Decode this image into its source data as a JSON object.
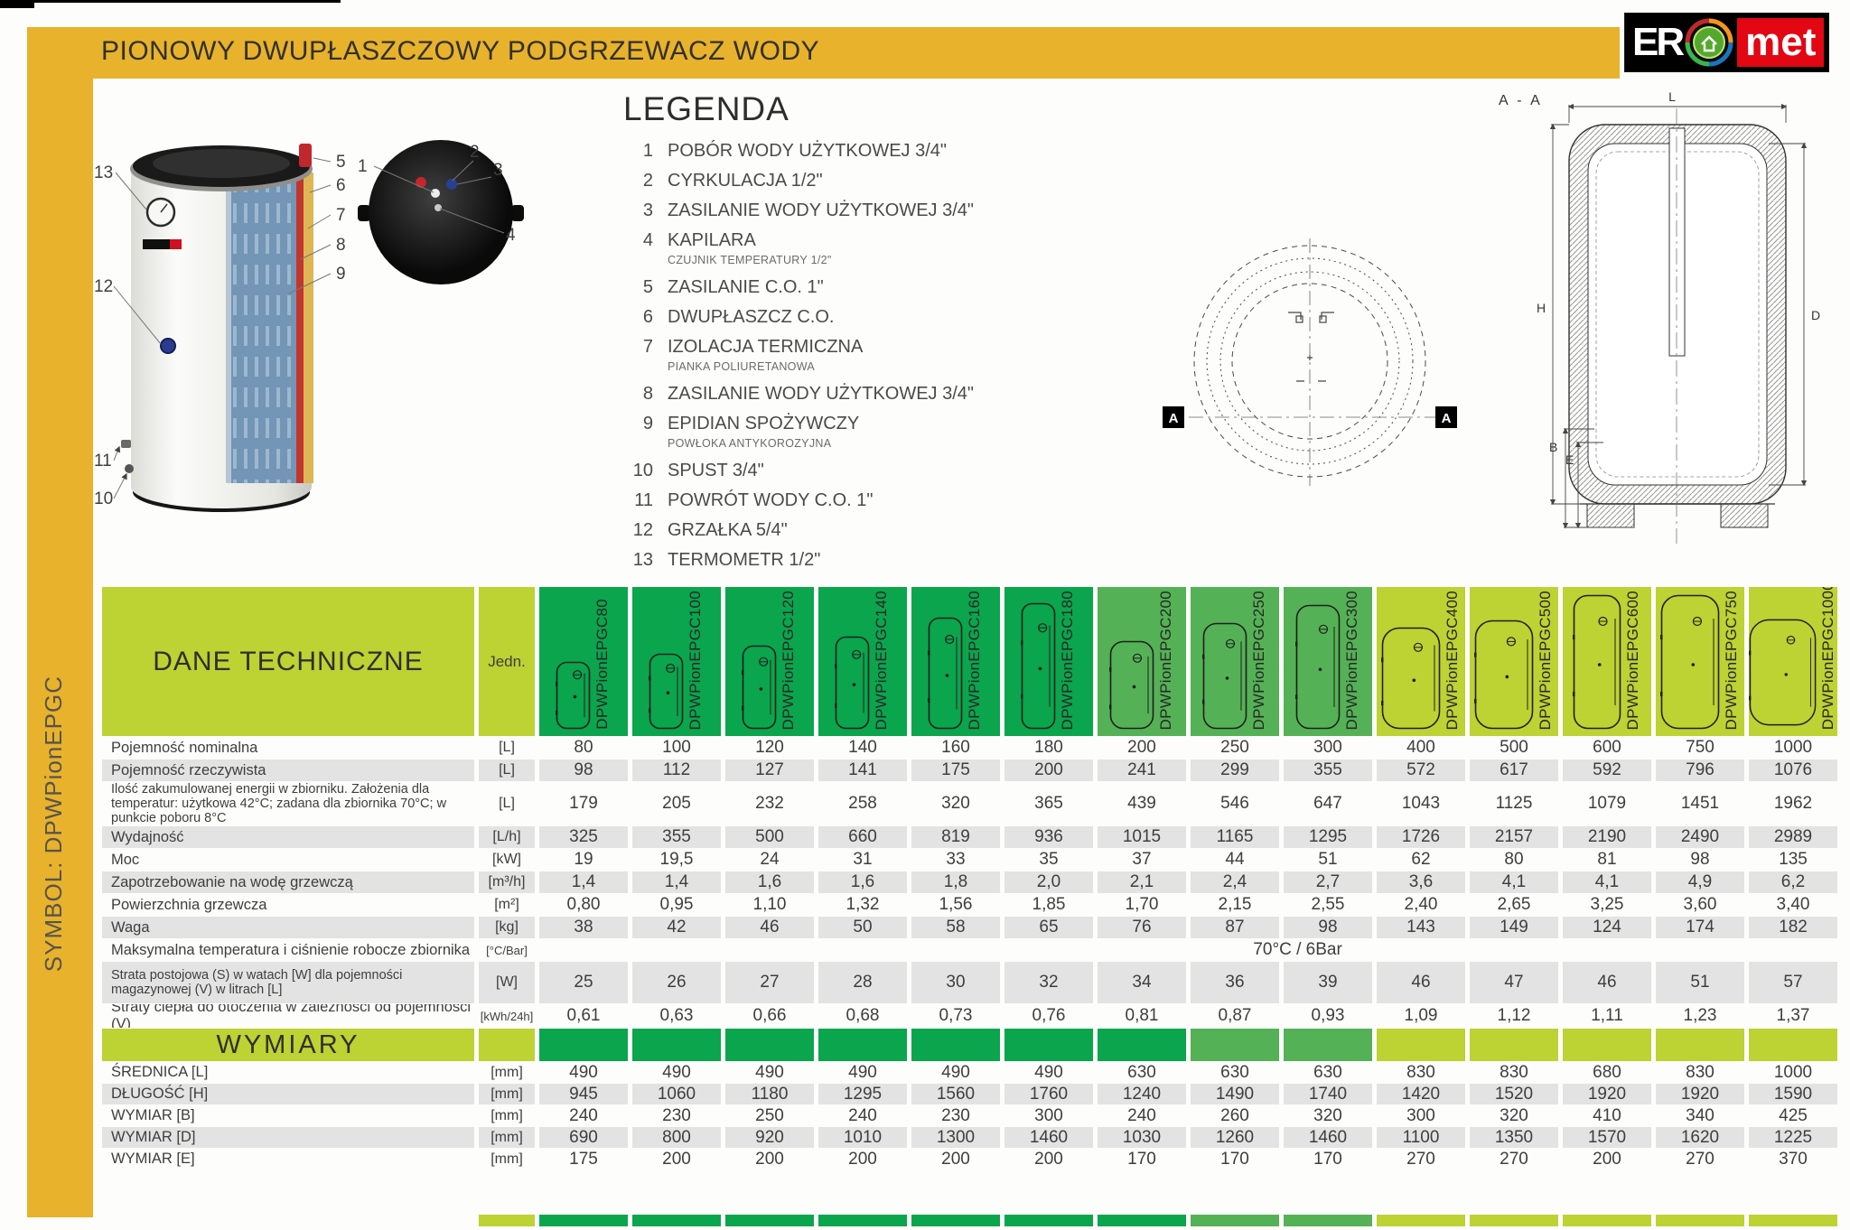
{
  "header": {
    "title": "PIONOWY DWUPŁASZCZOWY PODGRZEWACZ WODY",
    "logo": {
      "er": "ER",
      "met": "met"
    }
  },
  "sidebar": {
    "symbol": "SYMBOL: DPWPionEPGC"
  },
  "legend": {
    "title": "LEGENDA",
    "items": [
      {
        "num": "1",
        "label": "POBÓR WODY UŻYTKOWEJ 3/4\""
      },
      {
        "num": "2",
        "label": "CYRKULACJA 1/2\""
      },
      {
        "num": "3",
        "label": "ZASILANIE WODY UŻYTKOWEJ 3/4\""
      },
      {
        "num": "4",
        "label": "KAPILARA",
        "sub": "CZUJNIK TEMPERATURY 1/2\""
      },
      {
        "num": "5",
        "label": "ZASILANIE C.O. 1\""
      },
      {
        "num": "6",
        "label": "DWUPŁASZCZ C.O."
      },
      {
        "num": "7",
        "label": "IZOLACJA TERMICZNA",
        "sub": "PIANKA POLIURETANOWA"
      },
      {
        "num": "8",
        "label": "ZASILANIE WODY UŻYTKOWEJ 3/4\""
      },
      {
        "num": "9",
        "label": "EPIDIAN SPOŻYWCZY",
        "sub": "POWŁOKA ANTYKOROZYJNA"
      },
      {
        "num": "10",
        "label": "SPUST 3/4\""
      },
      {
        "num": "11",
        "label": "POWRÓT WODY C.O. 1\""
      },
      {
        "num": "12",
        "label": "GRZAŁKA 5/4\""
      },
      {
        "num": "13",
        "label": "TERMOMETR 1/2\""
      }
    ]
  },
  "illustration": {
    "callouts": [
      "1",
      "2",
      "3",
      "4",
      "5",
      "6",
      "7",
      "8",
      "9",
      "10",
      "11",
      "12",
      "13"
    ]
  },
  "drawings": {
    "section_title": "A - A",
    "marker": "A",
    "dims": {
      "L": "L",
      "H": "H",
      "D": "D",
      "B": "B",
      "E": "E"
    }
  },
  "table": {
    "title": "DANE TECHNICZNE",
    "unit_header": "Jedn.",
    "colors": {
      "dark": "#0aa54d",
      "medium": "#55b156",
      "light": "#bdd233",
      "stripe": "#e3e3e3",
      "yellow": "#e8b22d"
    },
    "models": [
      "DPWPionEPGC80",
      "DPWPionEPGC100",
      "DPWPionEPGC120",
      "DPWPionEPGC140",
      "DPWPionEPGC160",
      "DPWPionEPGC180",
      "DPWPionEPGC200",
      "DPWPionEPGC250",
      "DPWPionEPGC300",
      "DPWPionEPGC400",
      "DPWPionEPGC500",
      "DPWPionEPGC600",
      "DPWPionEPGC750",
      "DPWPionEPGC1000"
    ],
    "rows": [
      {
        "label": "Pojemność nominalna",
        "unit": "[L]",
        "values": [
          "80",
          "100",
          "120",
          "140",
          "160",
          "180",
          "200",
          "250",
          "300",
          "400",
          "500",
          "600",
          "750",
          "1000"
        ]
      },
      {
        "label": "Pojemność rzeczywista",
        "unit": "[L]",
        "values": [
          "98",
          "112",
          "127",
          "141",
          "175",
          "200",
          "241",
          "299",
          "355",
          "572",
          "617",
          "592",
          "796",
          "1076"
        ]
      },
      {
        "label": "Ilość zakumulowanej energii w zbiorniku. Założenia dla temperatur: użytkowa 42°C; zadana dla zbiornika 70°C; w punkcie poboru 8°C",
        "unit": "[L]",
        "values": [
          "179",
          "205",
          "232",
          "258",
          "320",
          "365",
          "439",
          "546",
          "647",
          "1043",
          "1125",
          "1079",
          "1451",
          "1962"
        ]
      },
      {
        "label": "Wydajność",
        "unit": "[L/h]",
        "values": [
          "325",
          "355",
          "500",
          "660",
          "819",
          "936",
          "1015",
          "1165",
          "1295",
          "1726",
          "2157",
          "2190",
          "2490",
          "2989"
        ]
      },
      {
        "label": "Moc",
        "unit": "[kW]",
        "values": [
          "19",
          "19,5",
          "24",
          "31",
          "33",
          "35",
          "37",
          "44",
          "51",
          "62",
          "80",
          "81",
          "98",
          "135"
        ]
      },
      {
        "label": "Zapotrzebowanie na wodę grzewczą",
        "unit": "[m³/h]",
        "values": [
          "1,4",
          "1,4",
          "1,6",
          "1,6",
          "1,8",
          "2,0",
          "2,1",
          "2,4",
          "2,7",
          "3,6",
          "4,1",
          "4,1",
          "4,9",
          "6,2"
        ]
      },
      {
        "label": "Powierzchnia grzewcza",
        "unit": "[m²]",
        "values": [
          "0,80",
          "0,95",
          "1,10",
          "1,32",
          "1,56",
          "1,85",
          "1,70",
          "2,15",
          "2,55",
          "2,40",
          "2,65",
          "3,25",
          "3,60",
          "3,40"
        ]
      },
      {
        "label": "Waga",
        "unit": "[kg]",
        "values": [
          "38",
          "42",
          "46",
          "50",
          "58",
          "65",
          "76",
          "87",
          "98",
          "143",
          "149",
          "124",
          "174",
          "182"
        ]
      },
      {
        "label": "Strata postojowa (S) w watach [W] dla pojemności magazynowej (V) w litrach [L]",
        "unit": "[W]",
        "values": [
          "25",
          "26",
          "27",
          "28",
          "30",
          "32",
          "34",
          "36",
          "39",
          "46",
          "47",
          "46",
          "51",
          "57"
        ]
      },
      {
        "label": "Straty ciepła do otoczenia w zależności od pojemności (V)",
        "unit": "[kWh/24h]",
        "values": [
          "0,61",
          "0,63",
          "0,66",
          "0,68",
          "0,73",
          "0,76",
          "0,81",
          "0,87",
          "0,93",
          "1,09",
          "1,12",
          "1,11",
          "1,23",
          "1,37"
        ]
      }
    ],
    "max_temp_row": {
      "label": "Maksymalna temperatura i ciśnienie robocze zbiornika",
      "unit": "[°C/Bar]",
      "value": "70°C / 6Bar"
    },
    "wymiary_title": "WYMIARY",
    "wymiary_rows": [
      {
        "label": "ŚREDNICA [L]",
        "unit": "[mm]",
        "values": [
          "490",
          "490",
          "490",
          "490",
          "490",
          "490",
          "630",
          "630",
          "630",
          "830",
          "830",
          "680",
          "830",
          "1000"
        ]
      },
      {
        "label": "DŁUGOŚĆ [H]",
        "unit": "[mm]",
        "values": [
          "945",
          "1060",
          "1180",
          "1295",
          "1560",
          "1760",
          "1240",
          "1490",
          "1740",
          "1420",
          "1520",
          "1920",
          "1920",
          "1590"
        ]
      },
      {
        "label": "WYMIAR [B]",
        "unit": "[mm]",
        "values": [
          "240",
          "230",
          "250",
          "240",
          "230",
          "300",
          "240",
          "260",
          "320",
          "300",
          "320",
          "410",
          "340",
          "425"
        ]
      },
      {
        "label": "WYMIAR [D]",
        "unit": "[mm]",
        "values": [
          "690",
          "800",
          "920",
          "1010",
          "1300",
          "1460",
          "1030",
          "1260",
          "1460",
          "1100",
          "1350",
          "1570",
          "1620",
          "1225"
        ]
      },
      {
        "label": "WYMIAR [E]",
        "unit": "[mm]",
        "values": [
          "175",
          "200",
          "200",
          "200",
          "200",
          "200",
          "170",
          "170",
          "170",
          "270",
          "270",
          "200",
          "270",
          "370"
        ]
      }
    ]
  }
}
